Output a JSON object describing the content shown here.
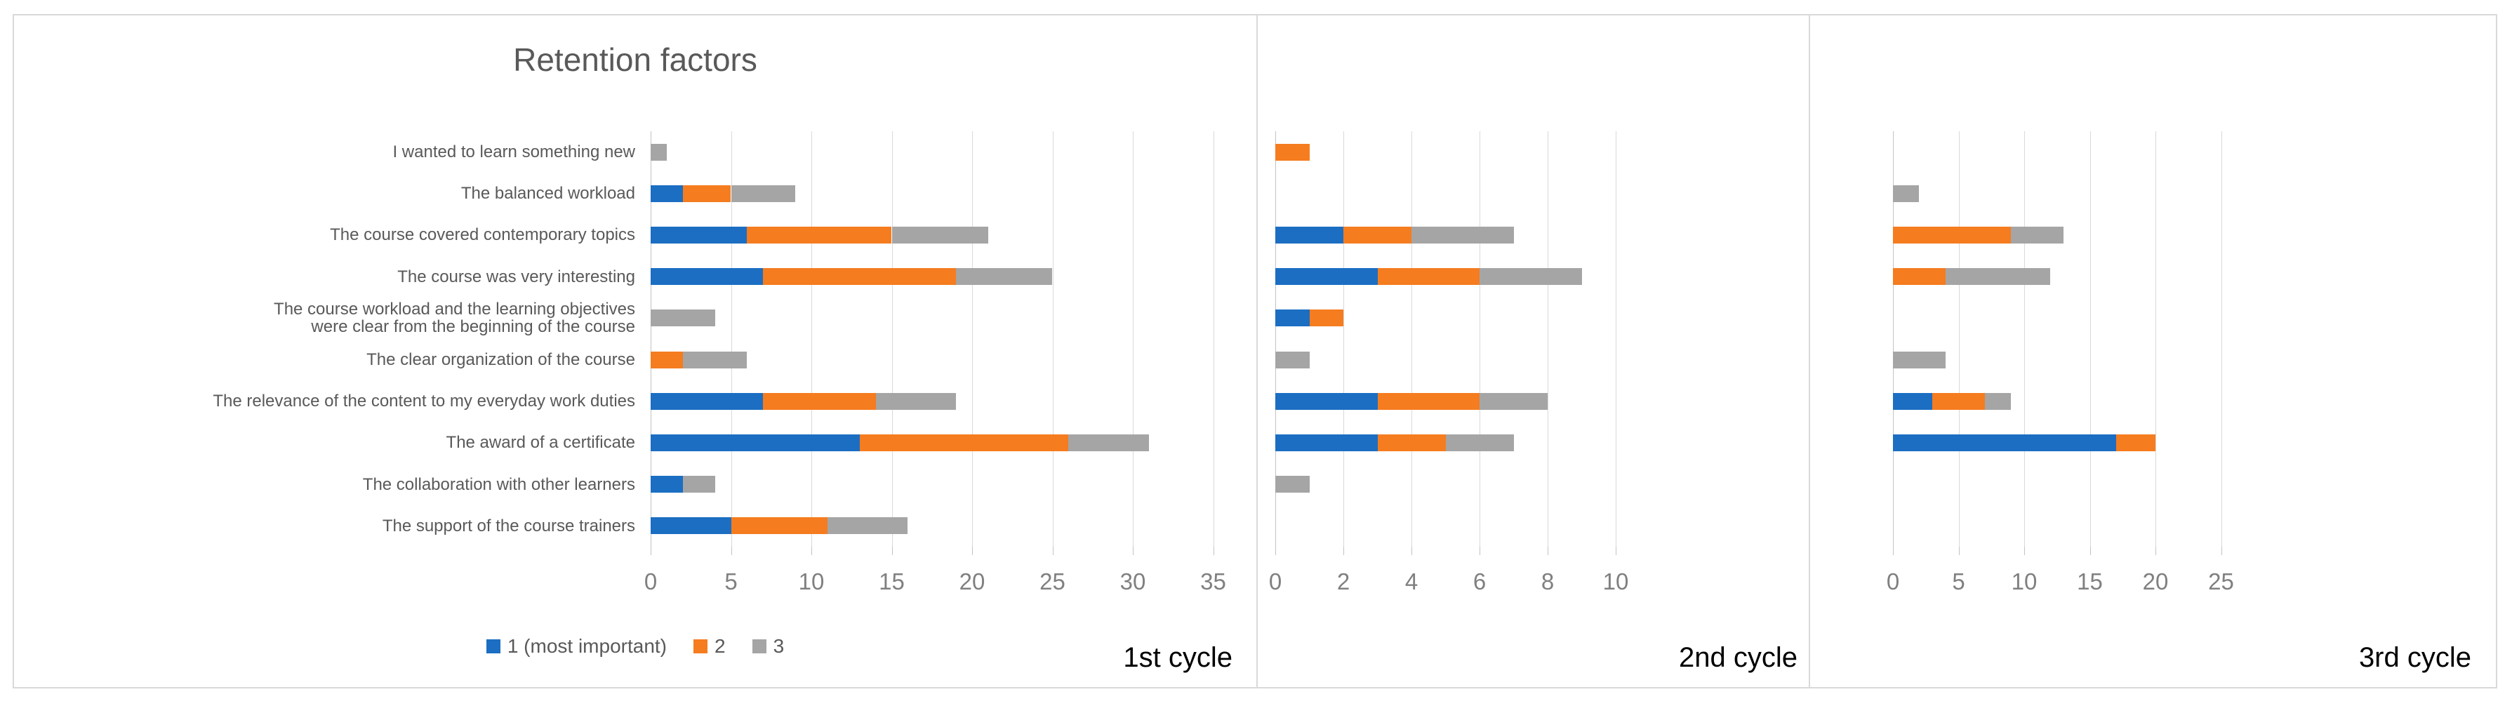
{
  "chart_data": {
    "type": "bar",
    "orientation": "horizontal-stacked",
    "title": "Retention factors",
    "categories": [
      "I wanted to learn something new",
      "The balanced workload",
      "The course covered contemporary topics",
      "The course was very interesting",
      "The course workload and the learning objectives\nwere clear from the beginning of the course",
      "The clear organization of the course",
      "The relevance of the content to my everyday work duties",
      "The award of a certificate",
      "The collaboration with other learners",
      "The support of the course trainers"
    ],
    "legend": [
      {
        "label": "1 (most important)",
        "color": "#1B6EC2"
      },
      {
        "label": "2",
        "color": "#F57C1F"
      },
      {
        "label": "3",
        "color": "#A5A5A5"
      }
    ],
    "legend_position": "bottom-of-first-panel",
    "grid": true,
    "panels": [
      {
        "label": "1st cycle",
        "xlim": [
          0,
          35
        ],
        "tick_step": 5,
        "ticks": [
          0,
          5,
          10,
          15,
          20,
          25,
          30,
          35
        ],
        "series": [
          {
            "name": "1 (most important)",
            "values": [
              0,
              2,
              6,
              7,
              0,
              0,
              7,
              13,
              2,
              5
            ]
          },
          {
            "name": "2",
            "values": [
              0,
              3,
              9,
              12,
              0,
              2,
              7,
              13,
              0,
              6
            ]
          },
          {
            "name": "3",
            "values": [
              1,
              4,
              6,
              6,
              4,
              4,
              5,
              5,
              2,
              5
            ]
          }
        ]
      },
      {
        "label": "2nd cycle",
        "xlim": [
          0,
          10
        ],
        "tick_step": 2,
        "ticks": [
          0,
          2,
          4,
          6,
          8,
          10
        ],
        "series": [
          {
            "name": "1 (most important)",
            "values": [
              0,
              0,
              2,
              3,
              1,
              0,
              3,
              3,
              0,
              0
            ]
          },
          {
            "name": "2",
            "values": [
              1,
              0,
              2,
              3,
              1,
              0,
              3,
              2,
              0,
              0
            ]
          },
          {
            "name": "3",
            "values": [
              0,
              0,
              3,
              3,
              0,
              1,
              2,
              2,
              1,
              0
            ]
          }
        ]
      },
      {
        "label": "3rd cycle",
        "xlim": [
          0,
          25
        ],
        "tick_step": 5,
        "ticks": [
          0,
          5,
          10,
          15,
          20,
          25
        ],
        "series": [
          {
            "name": "1 (most important)",
            "values": [
              0,
              0,
              0,
              0,
              0,
              0,
              3,
              17,
              0,
              0
            ]
          },
          {
            "name": "2",
            "values": [
              0,
              0,
              9,
              4,
              0,
              0,
              4,
              3,
              0,
              0
            ]
          },
          {
            "name": "3",
            "values": [
              0,
              2,
              4,
              8,
              0,
              4,
              2,
              0,
              0,
              0
            ]
          }
        ]
      }
    ],
    "colors": {
      "series1": "#1B6EC2",
      "series2": "#F57C1F",
      "series3": "#A5A5A5",
      "gridline": "#D9D9D9",
      "zero_axis_line": "#C3C3C3",
      "tick_label": "#808080",
      "category_label": "#595959",
      "title": "#595959",
      "cycle_label": "#000000",
      "figure_border": "#D9D9D9"
    }
  }
}
